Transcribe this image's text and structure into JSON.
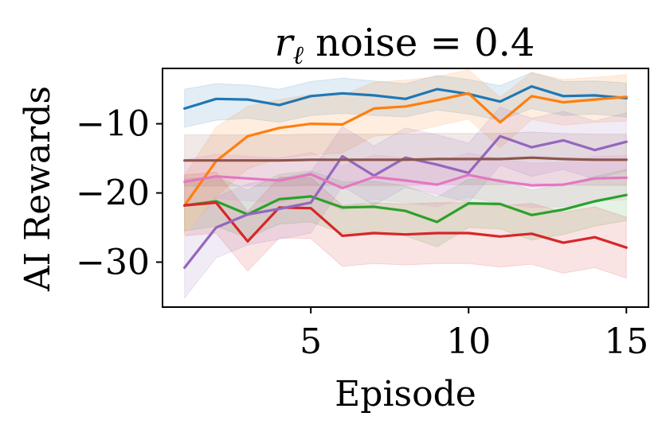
{
  "chart_data": {
    "type": "line",
    "title": {
      "symbol": "r",
      "subscript": "ℓ",
      "rest": " noise = 0.4"
    },
    "xlabel": "Episode",
    "ylabel": "AI Rewards",
    "xlim": [
      0.3,
      15.7
    ],
    "ylim": [
      -36.5,
      -2.0
    ],
    "xticks": [
      5,
      10,
      15
    ],
    "xtick_labels": [
      "5",
      "10",
      "15"
    ],
    "yticks": [
      -10,
      -20,
      -30
    ],
    "ytick_labels": [
      "−10",
      "−20",
      "−30"
    ],
    "x": [
      1,
      2,
      3,
      4,
      5,
      6,
      7,
      8,
      9,
      10,
      11,
      12,
      13,
      14,
      15
    ],
    "series": [
      {
        "name": "blue",
        "color": "#1f77b4",
        "values": [
          -7.8,
          -6.4,
          -6.5,
          -7.3,
          -6.0,
          -5.6,
          -5.9,
          -6.4,
          -5.0,
          -5.7,
          -6.8,
          -4.6,
          -6.0,
          -5.9,
          -6.3
        ],
        "lower": [
          -10.5,
          -9.5,
          -9.2,
          -9.8,
          -8.8,
          -8.5,
          -8.8,
          -9.0,
          -8.0,
          -8.6,
          -9.5,
          -7.8,
          -8.8,
          -8.6,
          -9.0
        ],
        "upper": [
          -5.0,
          -4.2,
          -4.4,
          -5.0,
          -3.9,
          -3.4,
          -3.8,
          -4.2,
          -3.0,
          -3.6,
          -4.5,
          -2.6,
          -3.9,
          -3.8,
          -4.1
        ]
      },
      {
        "name": "orange",
        "color": "#ff7f0e",
        "values": [
          -21.8,
          -15.4,
          -11.8,
          -10.6,
          -10.0,
          -10.1,
          -7.8,
          -7.5,
          -6.6,
          -5.6,
          -9.8,
          -6.0,
          -6.9,
          -6.5,
          -6.1
        ],
        "lower": [
          -26.0,
          -20.5,
          -16.5,
          -15.0,
          -14.5,
          -14.2,
          -11.8,
          -11.4,
          -10.3,
          -9.3,
          -13.5,
          -9.4,
          -10.2,
          -9.8,
          -9.6
        ],
        "upper": [
          -17.5,
          -10.5,
          -7.5,
          -6.5,
          -5.8,
          -5.9,
          -4.0,
          -3.7,
          -3.2,
          -2.2,
          -6.2,
          -2.6,
          -3.6,
          -3.3,
          -2.9
        ]
      },
      {
        "name": "green",
        "color": "#2ca02c",
        "values": [
          -21.8,
          -21.2,
          -23.1,
          -20.9,
          -20.5,
          -22.1,
          -22.0,
          -22.6,
          -24.2,
          -21.5,
          -21.6,
          -23.2,
          -22.4,
          -21.2,
          -20.3
        ],
        "lower": [
          -25.5,
          -24.8,
          -26.5,
          -24.5,
          -24.2,
          -25.8,
          -25.6,
          -26.2,
          -27.8,
          -25.0,
          -25.2,
          -26.8,
          -26.0,
          -24.8,
          -24.0
        ],
        "upper": [
          -18.0,
          -17.6,
          -19.6,
          -17.3,
          -16.8,
          -18.4,
          -18.3,
          -19.0,
          -20.6,
          -18.0,
          -18.0,
          -19.6,
          -18.8,
          -17.6,
          -16.6
        ]
      },
      {
        "name": "red",
        "color": "#d62728",
        "values": [
          -21.8,
          -21.4,
          -27.0,
          -22.1,
          -22.2,
          -26.2,
          -25.8,
          -26.0,
          -25.8,
          -25.8,
          -26.3,
          -25.9,
          -27.2,
          -26.4,
          -27.9
        ],
        "lower": [
          -26.2,
          -25.8,
          -31.3,
          -26.5,
          -26.6,
          -30.6,
          -30.2,
          -30.4,
          -30.2,
          -30.2,
          -30.7,
          -30.3,
          -31.6,
          -30.8,
          -32.3
        ],
        "upper": [
          -17.4,
          -17.0,
          -22.7,
          -17.7,
          -17.8,
          -21.8,
          -21.4,
          -21.6,
          -21.4,
          -21.4,
          -21.9,
          -21.5,
          -22.8,
          -22.0,
          -23.5
        ]
      },
      {
        "name": "purple",
        "color": "#9467bd",
        "values": [
          -30.8,
          -25.0,
          -23.1,
          -22.3,
          -21.4,
          -14.7,
          -17.5,
          -14.9,
          -15.9,
          -17.1,
          -11.8,
          -13.4,
          -12.4,
          -13.8,
          -12.6
        ],
        "lower": [
          -35.2,
          -29.4,
          -27.5,
          -26.7,
          -25.8,
          -19.0,
          -21.8,
          -19.2,
          -20.2,
          -21.4,
          -16.0,
          -17.6,
          -16.6,
          -18.0,
          -16.8
        ],
        "upper": [
          -26.4,
          -20.6,
          -18.7,
          -17.9,
          -17.0,
          -10.4,
          -13.2,
          -10.6,
          -11.6,
          -12.8,
          -7.6,
          -9.2,
          -8.2,
          -9.6,
          -8.4
        ]
      },
      {
        "name": "brown",
        "color": "#8c564b",
        "values": [
          -15.3,
          -15.3,
          -15.3,
          -15.3,
          -15.2,
          -15.2,
          -15.2,
          -15.2,
          -15.1,
          -15.1,
          -15.1,
          -14.9,
          -15.1,
          -15.2,
          -15.2
        ],
        "lower": [
          -19.0,
          -19.0,
          -19.0,
          -19.0,
          -18.9,
          -18.9,
          -18.9,
          -18.9,
          -18.8,
          -18.8,
          -18.8,
          -18.6,
          -18.8,
          -18.9,
          -18.9
        ],
        "upper": [
          -11.6,
          -11.6,
          -11.6,
          -11.6,
          -11.5,
          -11.5,
          -11.5,
          -11.5,
          -11.4,
          -11.4,
          -11.4,
          -11.2,
          -11.4,
          -11.5,
          -11.5
        ]
      },
      {
        "name": "pink",
        "color": "#e377c2",
        "values": [
          -18.4,
          -17.6,
          -17.9,
          -18.2,
          -17.3,
          -19.3,
          -17.7,
          -18.2,
          -18.8,
          -17.4,
          -18.3,
          -18.9,
          -18.8,
          -17.9,
          -17.8
        ],
        "lower": [
          -21.6,
          -20.8,
          -21.1,
          -21.4,
          -20.5,
          -22.5,
          -20.9,
          -21.4,
          -22.0,
          -20.6,
          -21.5,
          -22.1,
          -22.0,
          -21.1,
          -21.0
        ],
        "upper": [
          -15.2,
          -14.4,
          -14.7,
          -15.0,
          -14.1,
          -16.1,
          -14.5,
          -15.0,
          -15.6,
          -14.2,
          -15.1,
          -15.7,
          -15.6,
          -14.7,
          -14.6
        ]
      }
    ]
  }
}
